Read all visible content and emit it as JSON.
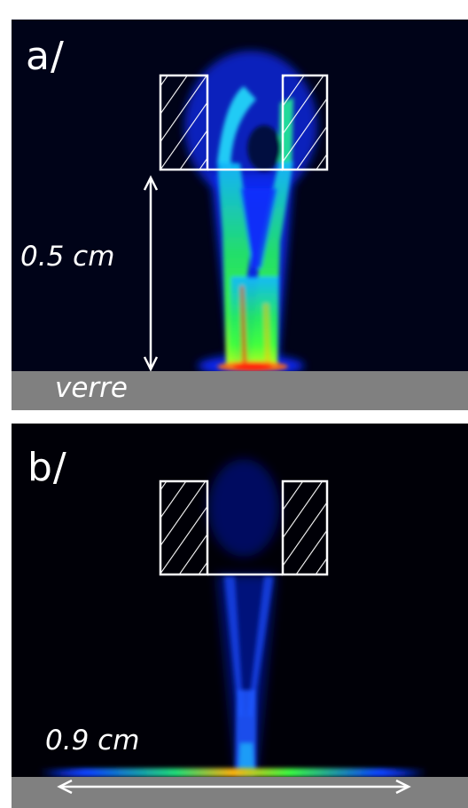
{
  "figure": {
    "panel_a": {
      "label": "a/",
      "height_label": "0.5 cm",
      "substrate_label": "verre"
    },
    "panel_b": {
      "label": "b/",
      "width_label": "0.9 cm"
    }
  },
  "colors": {
    "background_a": "#000318",
    "background_b": "#000007",
    "substrate": "#808080",
    "annotation": "#ffffff",
    "plume_low": "#0a2cff",
    "plume_mid": "#00e676",
    "plume_high": "#ff2a10"
  }
}
